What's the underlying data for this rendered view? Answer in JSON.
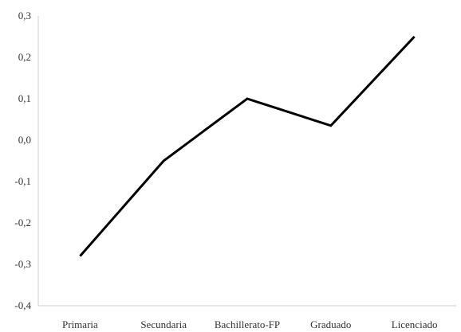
{
  "chart_data": {
    "type": "line",
    "title": "",
    "xlabel": "",
    "ylabel": "",
    "categories": [
      "Primaria",
      "Secundaria",
      "Bachillerato-FP",
      "Graduado",
      "Licenciado"
    ],
    "series": [
      {
        "values": [
          -0.28,
          -0.05,
          0.1,
          0.035,
          0.25
        ]
      }
    ],
    "ylim": [
      -0.4,
      0.3
    ],
    "yticks": [
      "0,3",
      "0,2",
      "0,1",
      "0,0",
      "-0,1",
      "-0,2",
      "-0,3",
      "-0,4"
    ],
    "grid": false,
    "legend": "none",
    "line_color": "#000000"
  }
}
